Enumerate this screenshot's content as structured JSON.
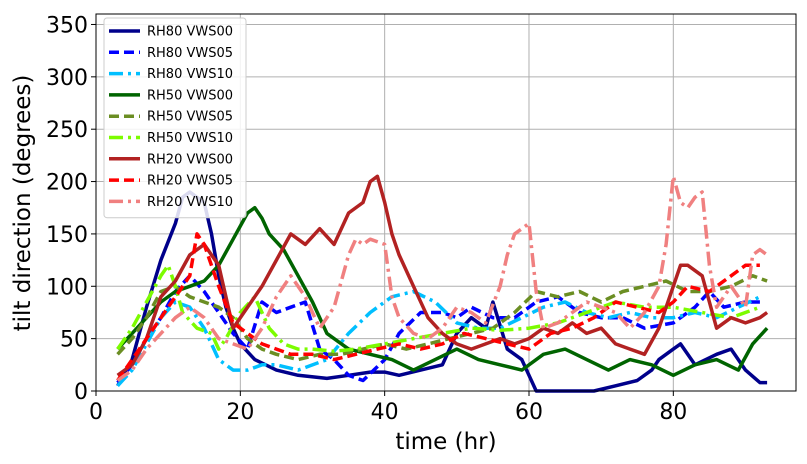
{
  "chart_data": {
    "type": "line",
    "title": "",
    "xlabel": "time (hr)",
    "ylabel": "tilt direction (degrees)",
    "xlim": [
      0,
      97
    ],
    "ylim": [
      0,
      360
    ],
    "xticks": [
      0,
      20,
      40,
      60,
      80
    ],
    "yticks": [
      0,
      50,
      100,
      150,
      200,
      250,
      300,
      350
    ],
    "grid": true,
    "legend_position": "top-left",
    "series": [
      {
        "name": "RH80 VWS00",
        "color": "#00008b",
        "dash": "solid",
        "x": [
          3,
          5,
          7,
          9,
          11,
          12,
          13,
          14,
          15,
          16,
          17,
          18,
          19,
          20,
          22,
          25,
          28,
          32,
          35,
          38,
          40,
          42,
          45,
          48,
          50,
          52,
          54,
          55,
          57,
          59,
          60,
          61,
          63,
          66,
          69,
          72,
          75,
          77,
          78,
          80,
          81,
          83,
          86,
          88,
          90,
          92,
          93
        ],
        "y": [
          5,
          30,
          80,
          125,
          160,
          185,
          190,
          185,
          180,
          150,
          110,
          80,
          60,
          45,
          30,
          20,
          15,
          12,
          15,
          18,
          18,
          15,
          20,
          25,
          55,
          70,
          60,
          85,
          40,
          30,
          15,
          0,
          0,
          0,
          0,
          5,
          10,
          20,
          30,
          40,
          45,
          25,
          35,
          40,
          20,
          8,
          8
        ]
      },
      {
        "name": "RH80 VWS05",
        "color": "#0000ff",
        "dash": "dashed",
        "x": [
          3,
          5,
          7,
          9,
          11,
          13,
          15,
          17,
          19,
          21,
          23,
          25,
          27,
          29,
          31,
          33,
          35,
          37,
          40,
          42,
          45,
          48,
          50,
          52,
          55,
          58,
          61,
          64,
          67,
          70,
          73,
          76,
          80,
          83,
          85,
          87,
          90,
          92
        ],
        "y": [
          8,
          25,
          50,
          70,
          95,
          110,
          95,
          75,
          55,
          40,
          85,
          75,
          80,
          85,
          40,
          30,
          15,
          10,
          30,
          55,
          75,
          75,
          70,
          80,
          70,
          70,
          85,
          90,
          75,
          70,
          70,
          60,
          65,
          80,
          95,
          80,
          85,
          85
        ]
      },
      {
        "name": "RH80 VWS10",
        "color": "#00bfff",
        "dash": "dash-dot",
        "x": [
          3,
          5,
          7,
          9,
          11,
          13,
          15,
          17,
          19,
          21,
          23,
          25,
          28,
          32,
          35,
          38,
          41,
          44,
          47,
          50,
          53,
          56,
          59,
          62,
          65,
          68,
          71,
          74,
          77,
          80,
          83,
          86,
          89,
          92
        ],
        "y": [
          5,
          20,
          45,
          70,
          85,
          80,
          60,
          30,
          20,
          20,
          25,
          25,
          20,
          30,
          55,
          75,
          90,
          95,
          85,
          65,
          60,
          60,
          70,
          80,
          85,
          75,
          70,
          75,
          70,
          70,
          75,
          70,
          80,
          90
        ]
      },
      {
        "name": "RH50 VWS00",
        "color": "#006400",
        "dash": "solid",
        "x": [
          3,
          5,
          7,
          9,
          11,
          13,
          15,
          17,
          19,
          21,
          22,
          23,
          24,
          26,
          28,
          30,
          32,
          35,
          38,
          41,
          44,
          47,
          50,
          53,
          56,
          59,
          62,
          65,
          68,
          71,
          74,
          77,
          80,
          83,
          86,
          89,
          91,
          93
        ],
        "y": [
          40,
          55,
          70,
          85,
          95,
          100,
          105,
          120,
          145,
          170,
          175,
          165,
          150,
          135,
          110,
          85,
          55,
          40,
          35,
          30,
          20,
          30,
          40,
          30,
          25,
          20,
          35,
          40,
          30,
          20,
          30,
          25,
          15,
          25,
          30,
          20,
          45,
          60
        ]
      },
      {
        "name": "RH50 VWS05",
        "color": "#6b8e23",
        "dash": "dashed",
        "x": [
          3,
          5,
          7,
          9,
          11,
          13,
          15,
          17,
          19,
          21,
          23,
          25,
          28,
          31,
          34,
          37,
          40,
          43,
          46,
          49,
          52,
          55,
          58,
          61,
          64,
          67,
          70,
          73,
          76,
          79,
          82,
          85,
          88,
          91,
          93
        ],
        "y": [
          35,
          50,
          70,
          95,
          100,
          90,
          85,
          80,
          70,
          50,
          40,
          35,
          30,
          35,
          35,
          40,
          45,
          40,
          45,
          50,
          55,
          60,
          75,
          95,
          90,
          95,
          85,
          95,
          100,
          105,
          95,
          95,
          100,
          110,
          105
        ]
      },
      {
        "name": "RH50 VWS10",
        "color": "#7cfc00",
        "dash": "dash-dot",
        "x": [
          3,
          5,
          7,
          9,
          10,
          11,
          12,
          14,
          16,
          17,
          18,
          20,
          22,
          24,
          26,
          28,
          30,
          33,
          36,
          40,
          44,
          48,
          52,
          56,
          60,
          64,
          68,
          72,
          76,
          80,
          84,
          88,
          92
        ],
        "y": [
          40,
          60,
          85,
          110,
          120,
          100,
          75,
          60,
          55,
          40,
          50,
          75,
          90,
          60,
          45,
          40,
          40,
          38,
          40,
          45,
          50,
          55,
          60,
          58,
          60,
          65,
          75,
          85,
          80,
          80,
          75,
          70,
          80
        ]
      },
      {
        "name": "RH20 VWS00",
        "color": "#b22222",
        "dash": "solid",
        "x": [
          3,
          5,
          7,
          9,
          11,
          13,
          15,
          17,
          19,
          21,
          23,
          25,
          27,
          29,
          31,
          33,
          35,
          37,
          38,
          39,
          40,
          41,
          42,
          44,
          46,
          48,
          50,
          52,
          54,
          56,
          58,
          60,
          62,
          64,
          66,
          68,
          70,
          72,
          74,
          76,
          78,
          80,
          81,
          82,
          84,
          86,
          88,
          90,
          92,
          93
        ],
        "y": [
          15,
          25,
          50,
          90,
          105,
          130,
          140,
          120,
          60,
          80,
          100,
          125,
          150,
          140,
          155,
          140,
          170,
          180,
          200,
          205,
          180,
          150,
          130,
          100,
          70,
          55,
          45,
          40,
          45,
          50,
          45,
          50,
          60,
          55,
          65,
          55,
          60,
          45,
          40,
          35,
          60,
          100,
          120,
          120,
          110,
          60,
          70,
          65,
          70,
          75
        ]
      },
      {
        "name": "RH20 VWS05",
        "color": "#ff0000",
        "dash": "dashed",
        "x": [
          3,
          5,
          7,
          8,
          9,
          11,
          13,
          14,
          15,
          17,
          19,
          21,
          23,
          25,
          27,
          30,
          33,
          36,
          39,
          42,
          45,
          48,
          51,
          54,
          57,
          60,
          63,
          66,
          69,
          72,
          75,
          78,
          80,
          82,
          85,
          88,
          90,
          92
        ],
        "y": [
          10,
          30,
          50,
          60,
          70,
          90,
          110,
          150,
          140,
          100,
          65,
          55,
          45,
          40,
          35,
          35,
          30,
          35,
          40,
          45,
          40,
          45,
          55,
          50,
          45,
          40,
          55,
          60,
          70,
          85,
          80,
          75,
          85,
          100,
          95,
          110,
          120,
          120
        ]
      },
      {
        "name": "RH20 VWS10",
        "color": "#f08080",
        "dash": "dash-dot",
        "x": [
          3,
          5,
          7,
          9,
          11,
          13,
          15,
          17,
          19,
          21,
          23,
          25,
          27,
          29,
          31,
          33,
          35,
          36,
          37,
          38,
          40,
          41,
          42,
          44,
          46,
          48,
          50,
          52,
          54,
          56,
          57,
          58,
          59,
          60,
          61,
          62,
          64,
          66,
          68,
          70,
          72,
          74,
          76,
          78,
          79,
          80,
          81,
          82,
          83,
          84,
          85,
          86,
          88,
          90,
          91,
          92,
          93
        ],
        "y": [
          10,
          20,
          40,
          55,
          70,
          80,
          70,
          50,
          45,
          40,
          60,
          90,
          110,
          90,
          60,
          80,
          130,
          145,
          140,
          145,
          140,
          90,
          70,
          55,
          50,
          60,
          80,
          75,
          65,
          100,
          130,
          150,
          155,
          160,
          95,
          60,
          65,
          75,
          85,
          80,
          75,
          60,
          75,
          100,
          140,
          205,
          180,
          175,
          185,
          190,
          120,
          80,
          100,
          80,
          130,
          135,
          130
        ]
      }
    ]
  }
}
